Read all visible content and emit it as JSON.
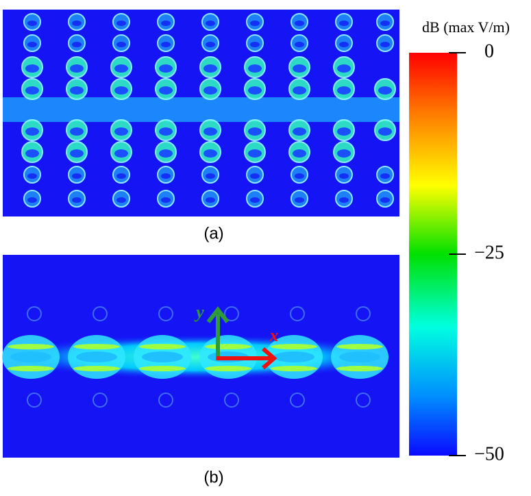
{
  "panels": [
    {
      "label": "(a)"
    },
    {
      "label": "(b)"
    }
  ],
  "axes_labels": {
    "y": "y",
    "x": "x"
  },
  "colorbar": {
    "title": "dB (max V/m)",
    "lim": [
      -50,
      0
    ],
    "ticks": [
      {
        "value": 0,
        "label": "0"
      },
      {
        "value": -25,
        "label": "−25"
      },
      {
        "value": -50,
        "label": "−50"
      }
    ]
  }
}
